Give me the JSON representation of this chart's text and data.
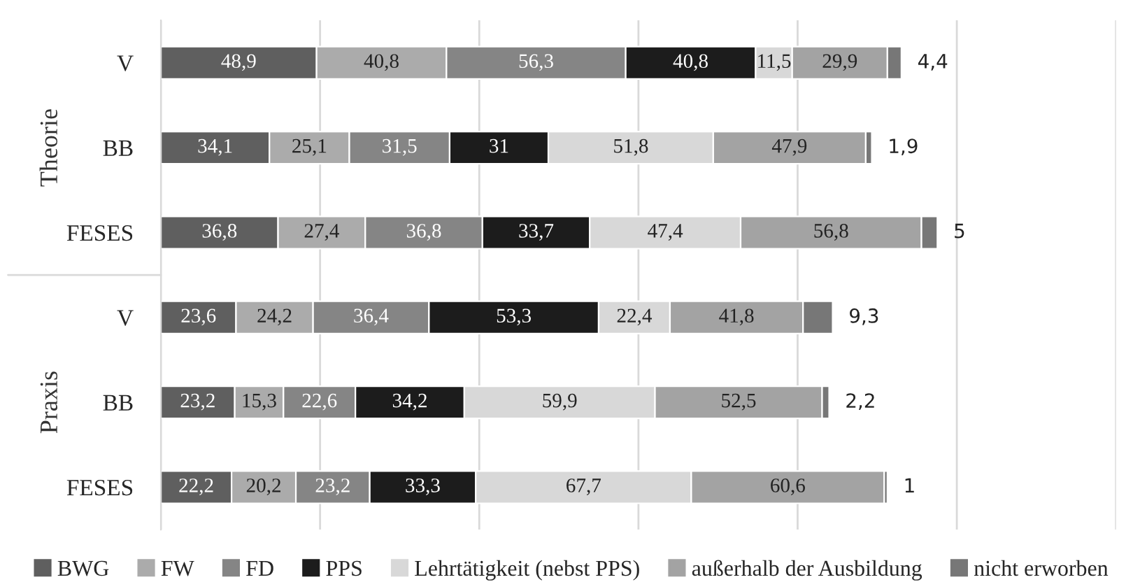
{
  "chart_data": {
    "type": "bar",
    "orientation": "horizontal",
    "stacked": true,
    "grid": "x",
    "legend": "bottom",
    "tick_labels": "y",
    "categories": [
      "V",
      "BB",
      "FESES",
      "V",
      "BB",
      "FESES"
    ],
    "xlim": [
      0,
      300
    ],
    "xticks": [
      {
        "value": 0,
        "label": null
      },
      {
        "value": 50,
        "label": null
      },
      {
        "value": 100,
        "label": null
      },
      {
        "value": 150,
        "label": null
      },
      {
        "value": 200,
        "label": null
      },
      {
        "value": 250,
        "label": null
      },
      {
        "value": 300,
        "label": null
      }
    ],
    "annotations": [
      "Theorie",
      "Praxis"
    ],
    "series": [
      {
        "name": "BWG",
        "color": "#5f5f5f",
        "values": [
          48.9,
          34.1,
          36.8,
          23.6,
          23.2,
          22.2
        ],
        "value_labels": [
          "48,9",
          "34,1",
          "36,8",
          "23,6",
          "23,2",
          "22,2"
        ]
      },
      {
        "name": "FW",
        "color": "#ababab",
        "values": [
          40.8,
          25.1,
          27.4,
          24.2,
          15.3,
          20.2
        ],
        "value_labels": [
          "40,8",
          "25,1",
          "27,4",
          "24,2",
          "15,3",
          "20,2"
        ]
      },
      {
        "name": "FD",
        "color": "#858585",
        "values": [
          56.3,
          31.5,
          36.8,
          36.4,
          22.6,
          23.2
        ],
        "value_labels": [
          "56,3",
          "31,5",
          "36,8",
          "36,4",
          "22,6",
          "23,2"
        ]
      },
      {
        "name": "PPS",
        "color": "#1c1c1c",
        "values": [
          40.8,
          31,
          33.7,
          53.3,
          34.2,
          33.3
        ],
        "value_labels": [
          "40,8",
          "31",
          "33,7",
          "53,3",
          "34,2",
          "33,3"
        ]
      },
      {
        "name": "Lehrtätigkeit (nebst PPS)",
        "color": "#d8d8d8",
        "values": [
          11.5,
          51.8,
          47.4,
          22.4,
          59.9,
          67.7
        ],
        "value_labels": [
          "11,5",
          "51,8",
          "47,4",
          "22,4",
          "59,9",
          "67,7"
        ]
      },
      {
        "name": "außerhalb der Ausbildung",
        "color": "#a3a3a3",
        "values": [
          29.9,
          47.9,
          56.8,
          41.8,
          52.5,
          60.6
        ],
        "value_labels": [
          "29,9",
          "47,9",
          "56,8",
          "41,8",
          "52,5",
          "60,6"
        ]
      },
      {
        "name": "nicht erworben",
        "color": "#777777",
        "values": [
          4.4,
          1.9,
          5,
          9.3,
          2.2,
          1
        ],
        "value_labels": [
          "4,4",
          "1,9",
          "5",
          "9,3",
          "2,2",
          "1"
        ]
      }
    ]
  }
}
